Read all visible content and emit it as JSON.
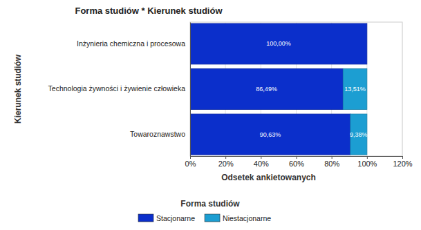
{
  "chart_data": {
    "type": "bar",
    "orientation": "horizontal",
    "stacked": true,
    "title": "Forma studiów * Kierunek studiów",
    "x_label": "Odsetek ankietowanych",
    "y_label": "Kierunek studiów",
    "legend_title": "Forma studiów",
    "legend": "bottom",
    "grid": true,
    "data_labels": true,
    "categories": [
      "Inżynieria chemiczna i procesowa",
      "Technologia żywności i żywienie człowieka",
      "Towaroznawstwo"
    ],
    "series": [
      {
        "name": "Stacjonarne",
        "color": "#0b2fcb",
        "values": [
          100,
          86.49,
          90.63
        ],
        "value_labels": [
          "100,00%",
          "86,49%",
          "90,63%"
        ]
      },
      {
        "name": "Niestacjonarne",
        "color": "#1c9ed2",
        "values": [
          null,
          13.51,
          9.38
        ],
        "value_labels": [
          null,
          "13,51%",
          "9,38%"
        ]
      }
    ],
    "xlim": [
      0,
      120
    ],
    "xticks": [
      {
        "value": 0,
        "label": "0%"
      },
      {
        "value": 20,
        "label": "20%"
      },
      {
        "value": 40,
        "label": "40%"
      },
      {
        "value": 60,
        "label": "60%"
      },
      {
        "value": 80,
        "label": "80%"
      },
      {
        "value": 100,
        "label": "100%"
      },
      {
        "value": 120,
        "label": "120%"
      }
    ]
  }
}
